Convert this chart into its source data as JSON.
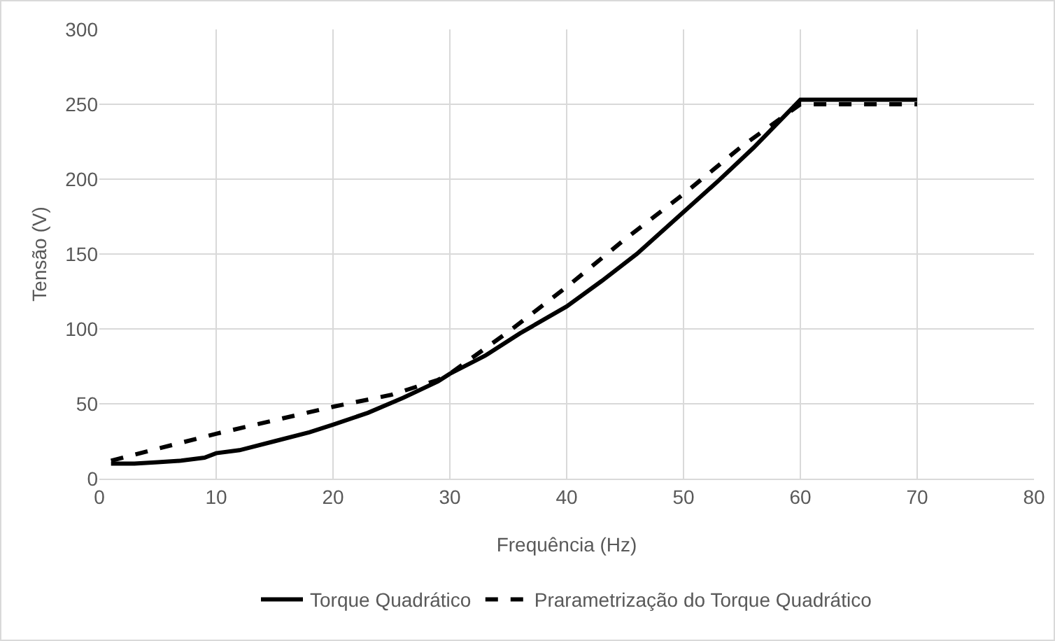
{
  "chart_data": {
    "type": "line",
    "xlabel": "Frequência (Hz)",
    "ylabel": "Tensão (V)",
    "xlim": [
      0,
      80
    ],
    "xticks": [
      0,
      10,
      20,
      30,
      40,
      50,
      60,
      70,
      80
    ],
    "ylim": [
      0,
      300
    ],
    "yticks": [
      0,
      50,
      100,
      150,
      200,
      250,
      300
    ],
    "grid": true,
    "legend": "bottom",
    "marker": "none",
    "series": [
      {
        "name": "Torque Quadrático",
        "color": "#000000",
        "line_style": "solid",
        "x": [
          1,
          3,
          5,
          7,
          9,
          10,
          12,
          15,
          18,
          20,
          23,
          26,
          29,
          30,
          33,
          36,
          40,
          43,
          46,
          50,
          53,
          56,
          60,
          65,
          70
        ],
        "values": [
          10,
          10,
          11,
          12,
          14,
          17,
          19,
          25,
          31,
          36,
          44,
          54,
          65,
          70,
          82,
          97,
          115,
          132,
          150,
          178,
          199,
          221,
          253,
          253,
          253
        ]
      },
      {
        "name": "Prarametrização do Torque Quadrático",
        "color": "#000000",
        "line_style": "dashed",
        "x": [
          1,
          5,
          10,
          15,
          20,
          25,
          29,
          30,
          35,
          40,
          45,
          50,
          55,
          60,
          65,
          70
        ],
        "values": [
          12,
          20,
          30,
          39,
          48,
          56,
          66,
          70,
          98,
          128,
          160,
          190,
          222,
          250,
          250,
          250
        ]
      }
    ]
  }
}
